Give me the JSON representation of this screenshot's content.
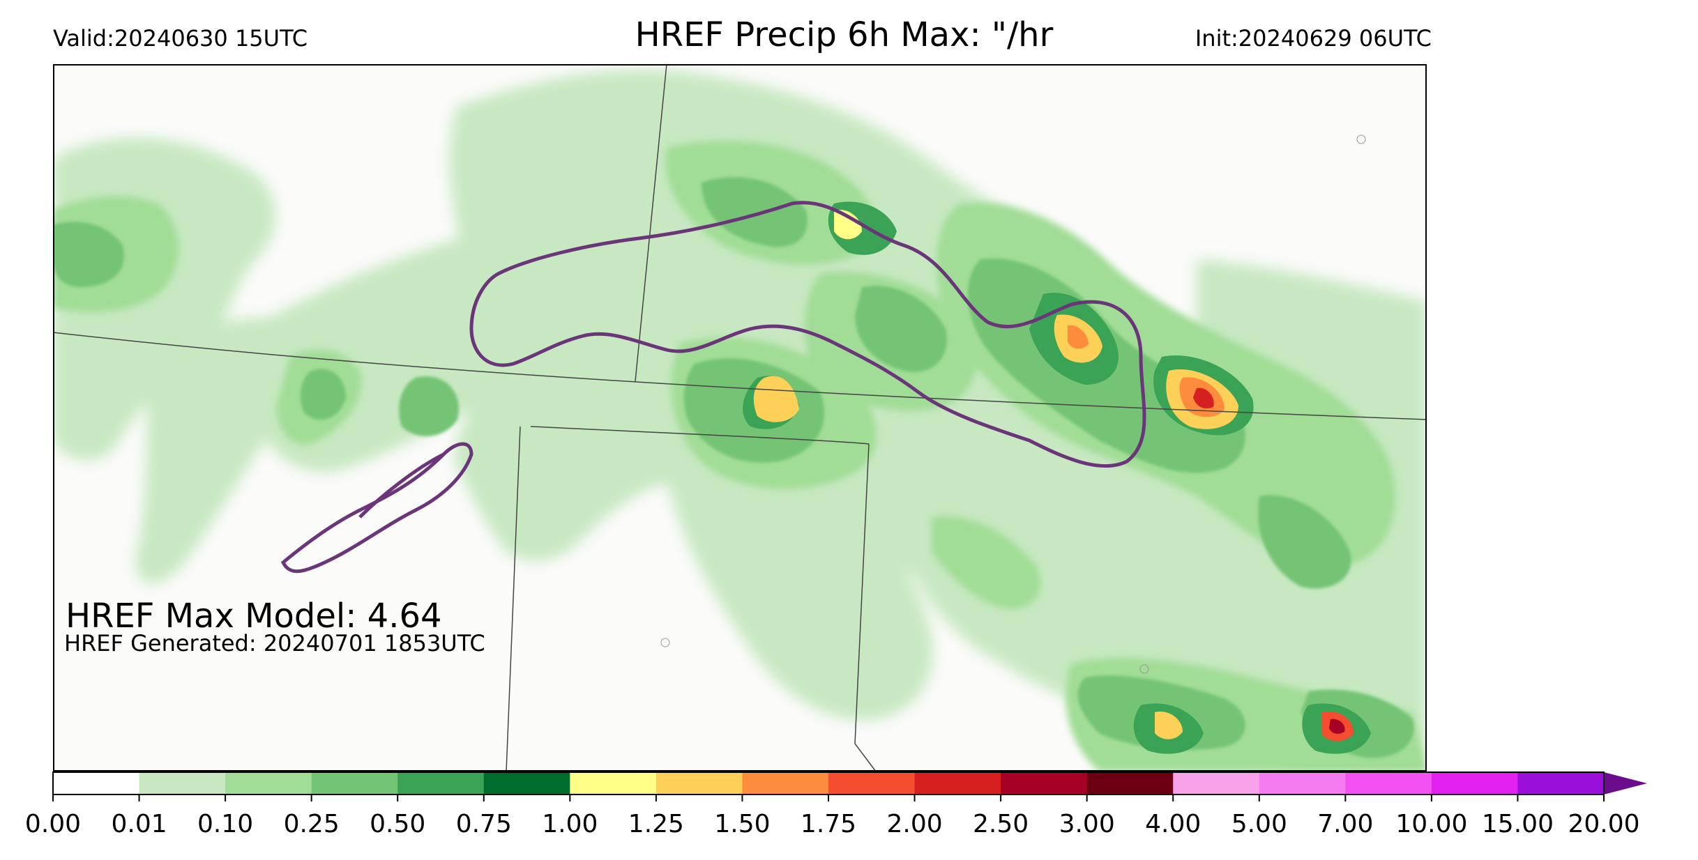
{
  "header": {
    "valid": "Valid:20240630 15UTC",
    "title": "HREF Precip 6h Max: \"/hr",
    "init": "Init:20240629 06UTC"
  },
  "annotations": {
    "max_model": "HREF Max Model: 4.64",
    "generated": "HREF Generated: 20240701 1853UTC"
  },
  "colorbar": {
    "ticks": [
      "0.00",
      "0.01",
      "0.10",
      "0.25",
      "0.50",
      "0.75",
      "1.00",
      "1.25",
      "1.50",
      "1.75",
      "2.00",
      "2.50",
      "3.00",
      "4.00",
      "5.00",
      "7.00",
      "10.00",
      "15.00",
      "20.00"
    ],
    "colors": [
      "#ffffff",
      "#c7e8c1",
      "#a1dd96",
      "#74c476",
      "#3aa356",
      "#006d2c",
      "#ffff88",
      "#fdd158",
      "#fd8c3c",
      "#f44d30",
      "#d6201f",
      "#a60026",
      "#6b0012",
      "#f8a2ea",
      "#f57cf0",
      "#f252f2",
      "#e220f0",
      "#9b10d8"
    ],
    "extend_color": "#6a0c8c"
  },
  "map": {
    "background": "#fbfbfa",
    "contour_color": "#6b3679",
    "border_color": "#444444"
  }
}
